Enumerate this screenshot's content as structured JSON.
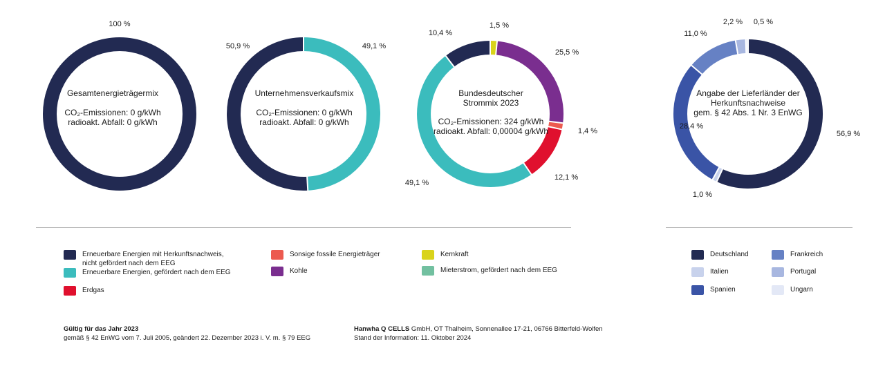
{
  "chart_data": [
    {
      "type": "pie",
      "title": "Gesamtenergieträgermix",
      "subtitle_lines": [
        "CO₂-Emissionen: 0 g/kWh",
        "radioakt. Abfall: 0 g/kWh"
      ],
      "slices": [
        {
          "label": "Erneuerbare Energien mit Herkunftsnachweis, nicht gefördert nach dem EEG",
          "value": 100,
          "value_label": "100 %",
          "color": "#222a52"
        }
      ]
    },
    {
      "type": "pie",
      "title": "Unternehmensverkaufsmix",
      "subtitle_lines": [
        "CO₂-Emissionen: 0 g/kWh",
        "radioakt. Abfall: 0 g/kWh"
      ],
      "slices": [
        {
          "label": "Erneuerbare Energien, gefördert nach dem EEG",
          "value": 49.1,
          "value_label": "49,1 %",
          "color": "#3bbcbd"
        },
        {
          "label": "Erneuerbare Energien mit Herkunftsnachweis, nicht gefördert nach dem EEG",
          "value": 50.9,
          "value_label": "50,9 %",
          "color": "#222a52"
        }
      ]
    },
    {
      "type": "pie",
      "title_lines": [
        "Bundesdeutscher",
        "Strommix 2023"
      ],
      "subtitle_lines": [
        "CO₂-Emissionen: 324 g/kWh",
        "radioakt. Abfall: 0,00004 g/kWh"
      ],
      "slices": [
        {
          "label": "Kernkraft",
          "value": 1.5,
          "value_label": "1,5 %",
          "color": "#d9d31a"
        },
        {
          "label": "Kohle",
          "value": 25.5,
          "value_label": "25,5 %",
          "color": "#7a2e8f"
        },
        {
          "label": "Sonsige fossile Energieträger",
          "value": 1.4,
          "value_label": "1,4 %",
          "color": "#ec5a4f"
        },
        {
          "label": "Erdgas",
          "value": 12.1,
          "value_label": "12,1 %",
          "color": "#e0102e"
        },
        {
          "label": "Erneuerbare Energien, gefördert nach dem EEG",
          "value": 49.1,
          "value_label": "49,1 %",
          "color": "#3bbcbd"
        },
        {
          "label": "Erneuerbare Energien mit Herkunftsnachweis, nicht gefördert nach dem EEG",
          "value": 10.4,
          "value_label": "10,4 %",
          "color": "#222a52"
        }
      ]
    },
    {
      "type": "pie",
      "title_lines": [
        "Angabe der Lieferländer der",
        "Herkunftsnachweise",
        "gem. § 42 Abs. 1 Nr. 3 EnWG"
      ],
      "slices": [
        {
          "label": "Deutschland",
          "value": 56.9,
          "value_label": "56,9 %",
          "color": "#222a52"
        },
        {
          "label": "Italien",
          "value": 1.0,
          "value_label": "1,0 %",
          "color": "#c8d2ec"
        },
        {
          "label": "Spanien",
          "value": 28.4,
          "value_label": "28,4 %",
          "color": "#3a54a6"
        },
        {
          "label": "Frankreich",
          "value": 11.0,
          "value_label": "11,0 %",
          "color": "#6681c4"
        },
        {
          "label": "Portugal",
          "value": 2.2,
          "value_label": "2,2 %",
          "color": "#a8b7e0"
        },
        {
          "label": "Ungarn",
          "value": 0.5,
          "value_label": "0,5 %",
          "color": "#e3e8f6"
        }
      ]
    }
  ],
  "legend_main": [
    {
      "label": "Erneuerbare Energien mit Herkunftsnachweis,\nnicht gefördert nach dem EEG",
      "color": "#222a52"
    },
    {
      "label": "Erneuerbare Energien, gefördert nach dem EEG",
      "color": "#3bbcbd"
    },
    {
      "label": "Erdgas",
      "color": "#e0102e"
    },
    {
      "label": "Sonsige fossile Energieträger",
      "color": "#ec5a4f"
    },
    {
      "label": "Kohle",
      "color": "#7a2e8f"
    },
    {
      "label": "Kernkraft",
      "color": "#d9d31a"
    },
    {
      "label": "Mieterstrom, gefördert nach dem EEG",
      "color": "#72c0a0"
    }
  ],
  "legend_countries": [
    {
      "label": "Deutschland",
      "color": "#222a52"
    },
    {
      "label": "Italien",
      "color": "#c8d2ec"
    },
    {
      "label": "Spanien",
      "color": "#3a54a6"
    },
    {
      "label": "Frankreich",
      "color": "#6681c4"
    },
    {
      "label": "Portugal",
      "color": "#a8b7e0"
    },
    {
      "label": "Ungarn",
      "color": "#e3e8f6"
    }
  ],
  "footer": {
    "validity_title": "Gültig für das Jahr 2023",
    "validity_text": "gemäß § 42 EnWG vom 7. Juli 2005, geändert 22. Dezember 2023 i. V. m. § 79 EEG",
    "company_name": "Hanwha Q CELLS",
    "company_text": " GmbH, OT Thalheim, Sonnenallee 17-21, 06766 Bitterfeld-Wolfen",
    "info_date": "Stand der Information: 11. Oktober 2024"
  }
}
